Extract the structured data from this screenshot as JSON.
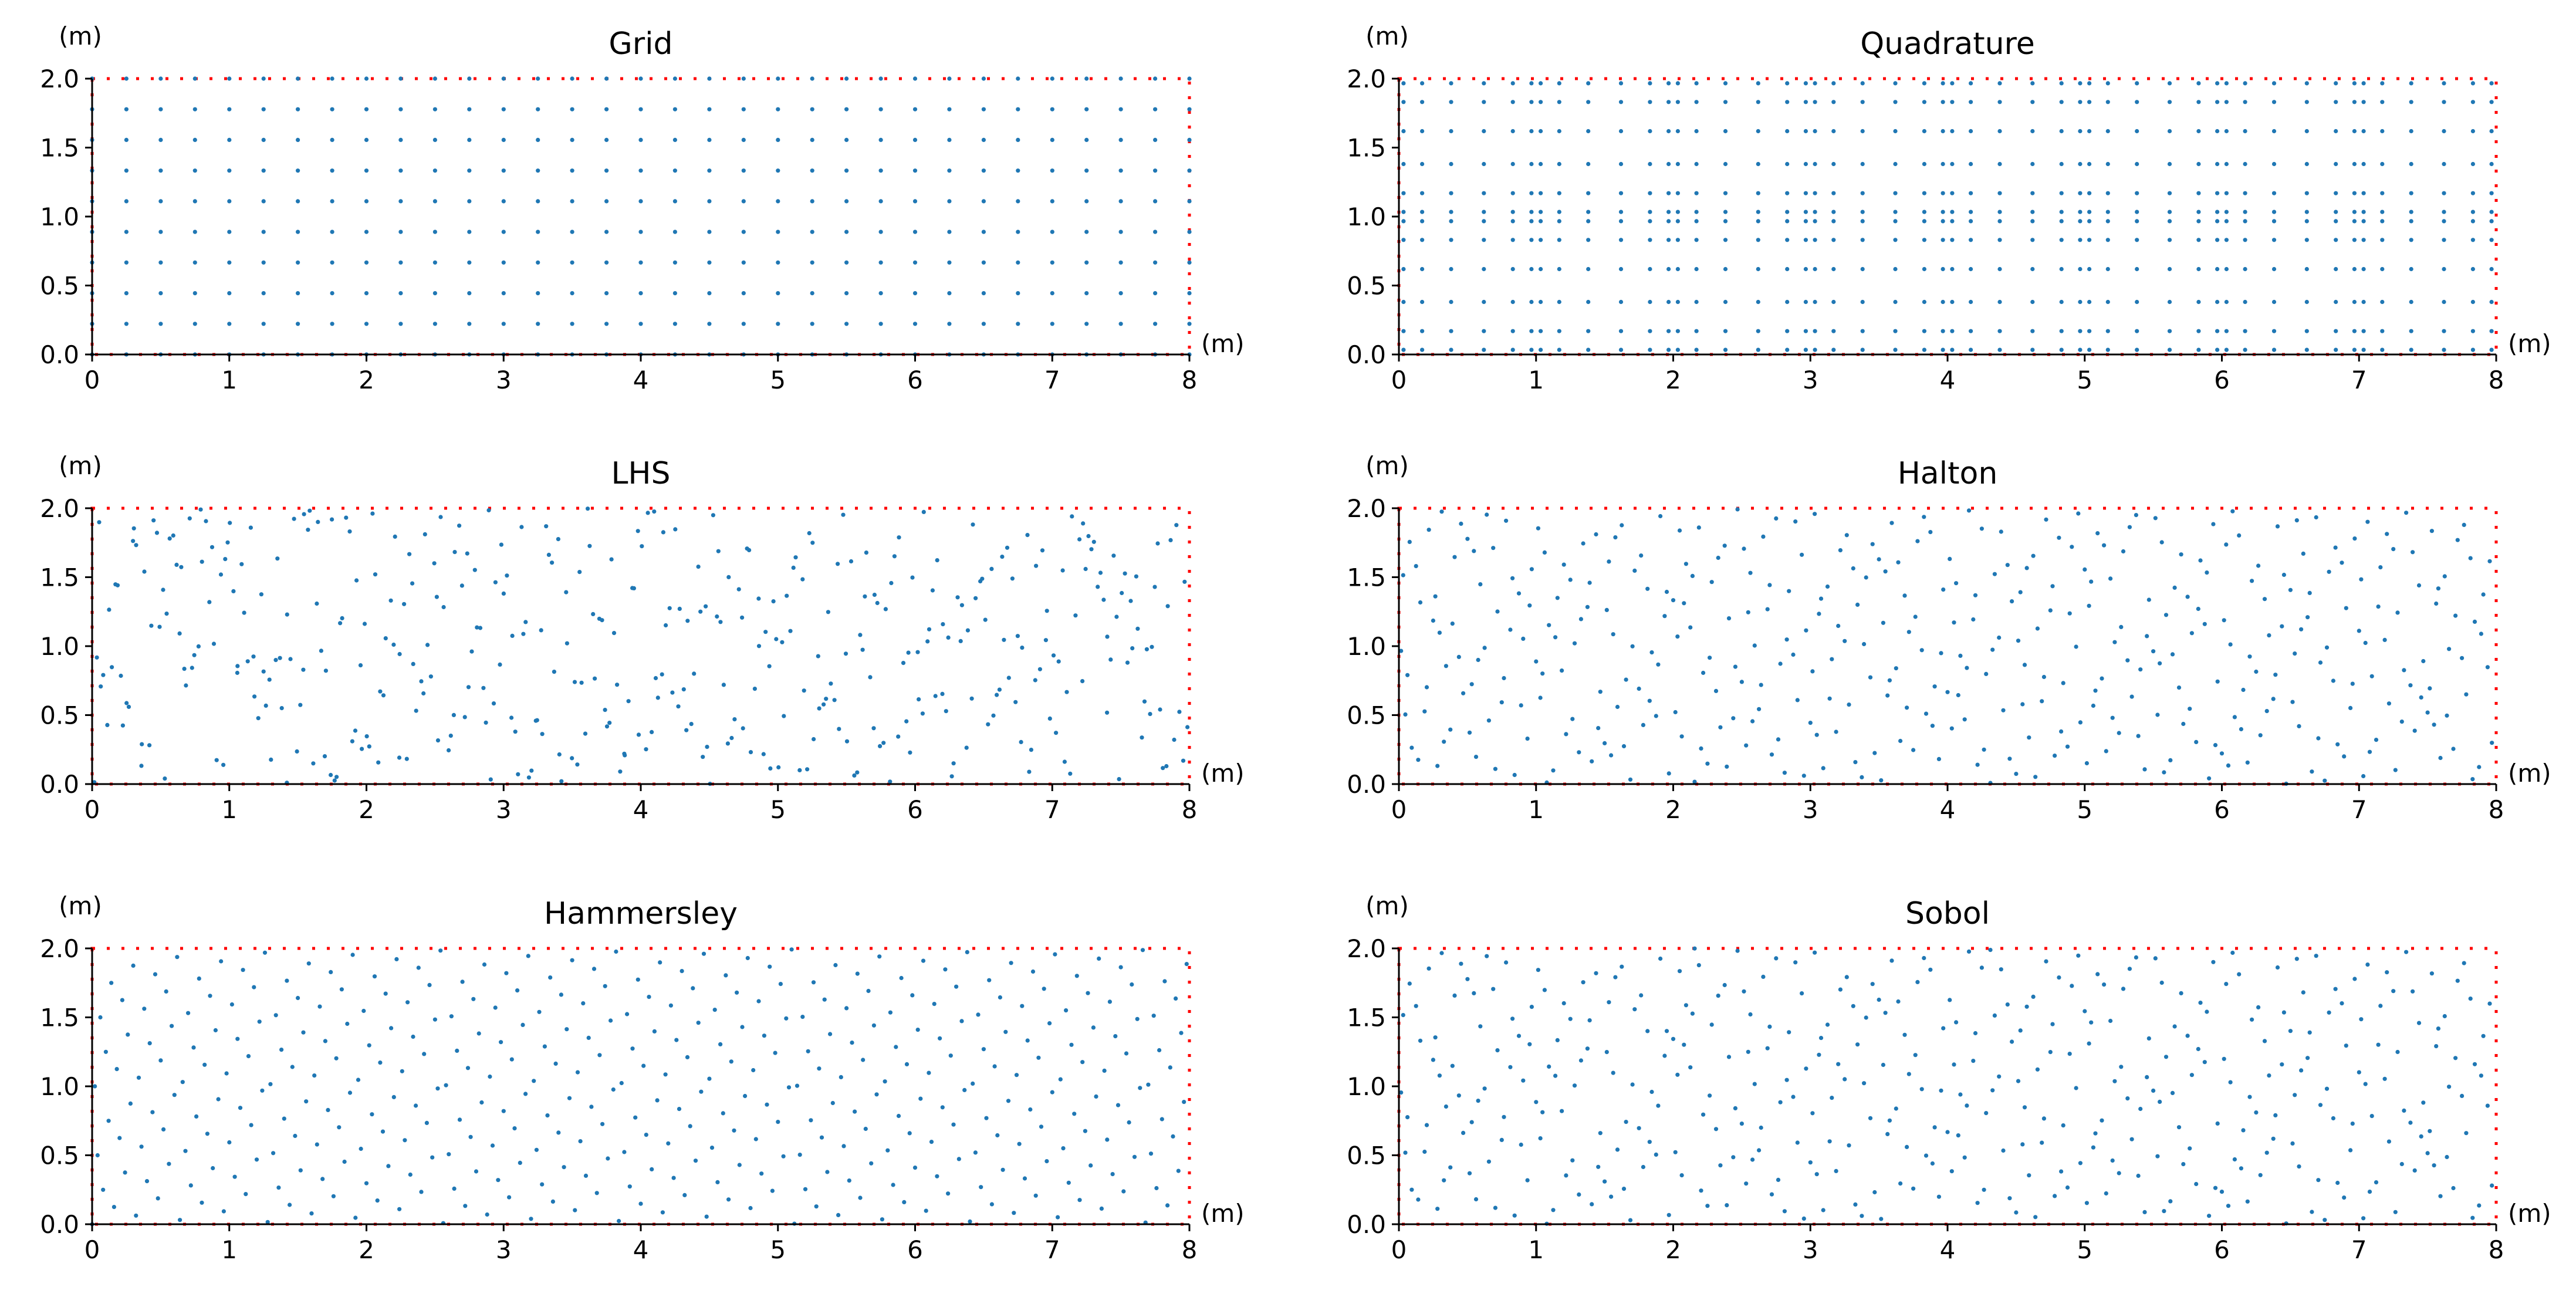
{
  "colors": {
    "points": "#1f77b4",
    "boundary": "#ff0000",
    "axes": "#000000"
  },
  "chart_data": [
    {
      "type": "scatter",
      "title": "Grid",
      "method": "grid",
      "xlabel": "(m)",
      "ylabel": "(m)",
      "xlim": [
        0,
        8
      ],
      "ylim": [
        0,
        2
      ],
      "xticks": [
        "0",
        "1",
        "2",
        "3",
        "4",
        "5",
        "6",
        "7",
        "8"
      ],
      "yticks": [
        "0.0",
        "0.5",
        "1.0",
        "1.5",
        "2.0"
      ],
      "n_points": 330,
      "grid_x_count": 33,
      "grid_y_count": 10,
      "boundary": "dotted rectangle x=0..8, y=0..2"
    },
    {
      "type": "scatter",
      "title": "Quadrature",
      "method": "gauss-legendre-quadrature",
      "xlabel": "(m)",
      "ylabel": "(m)",
      "xlim": [
        0,
        8
      ],
      "ylim": [
        0,
        2
      ],
      "xticks": [
        "0",
        "1",
        "2",
        "3",
        "4",
        "5",
        "6",
        "7",
        "8"
      ],
      "yticks": [
        "0.0",
        "0.5",
        "1.0",
        "1.5",
        "2.0"
      ],
      "x_elements": 8,
      "y_elements": 2,
      "points_per_element_x": 6,
      "points_per_element_y": 6,
      "boundary": "dotted rectangle x=0..8, y=0..2"
    },
    {
      "type": "scatter",
      "title": "LHS",
      "method": "latin-hypercube",
      "xlabel": "(m)",
      "ylabel": "(m)",
      "xlim": [
        0,
        8
      ],
      "ylim": [
        0,
        2
      ],
      "xticks": [
        "0",
        "1",
        "2",
        "3",
        "4",
        "5",
        "6",
        "7",
        "8"
      ],
      "yticks": [
        "0.0",
        "0.5",
        "1.0",
        "1.5",
        "2.0"
      ],
      "n_points": 400,
      "boundary": "dotted rectangle x=0..8, y=0..2"
    },
    {
      "type": "scatter",
      "title": "Halton",
      "method": "halton",
      "xlabel": "(m)",
      "ylabel": "(m)",
      "xlim": [
        0,
        8
      ],
      "ylim": [
        0,
        2
      ],
      "xticks": [
        "0",
        "1",
        "2",
        "3",
        "4",
        "5",
        "6",
        "7",
        "8"
      ],
      "yticks": [
        "0.0",
        "0.5",
        "1.0",
        "1.5",
        "2.0"
      ],
      "n_points": 400,
      "boundary": "dotted rectangle x=0..8, y=0..2"
    },
    {
      "type": "scatter",
      "title": "Hammersley",
      "method": "hammersley",
      "xlabel": "(m)",
      "ylabel": "(m)",
      "xlim": [
        0,
        8
      ],
      "ylim": [
        0,
        2
      ],
      "xticks": [
        "0",
        "1",
        "2",
        "3",
        "4",
        "5",
        "6",
        "7",
        "8"
      ],
      "yticks": [
        "0.0",
        "0.5",
        "1.0",
        "1.5",
        "2.0"
      ],
      "n_points": 400,
      "boundary": "dotted rectangle x=0..8, y=0..2"
    },
    {
      "type": "scatter",
      "title": "Sobol",
      "method": "sobol",
      "xlabel": "(m)",
      "ylabel": "(m)",
      "xlim": [
        0,
        8
      ],
      "ylim": [
        0,
        2
      ],
      "xticks": [
        "0",
        "1",
        "2",
        "3",
        "4",
        "5",
        "6",
        "7",
        "8"
      ],
      "yticks": [
        "0.0",
        "0.5",
        "1.0",
        "1.5",
        "2.0"
      ],
      "n_points": 400,
      "boundary": "dotted rectangle x=0..8, y=0..2"
    }
  ]
}
